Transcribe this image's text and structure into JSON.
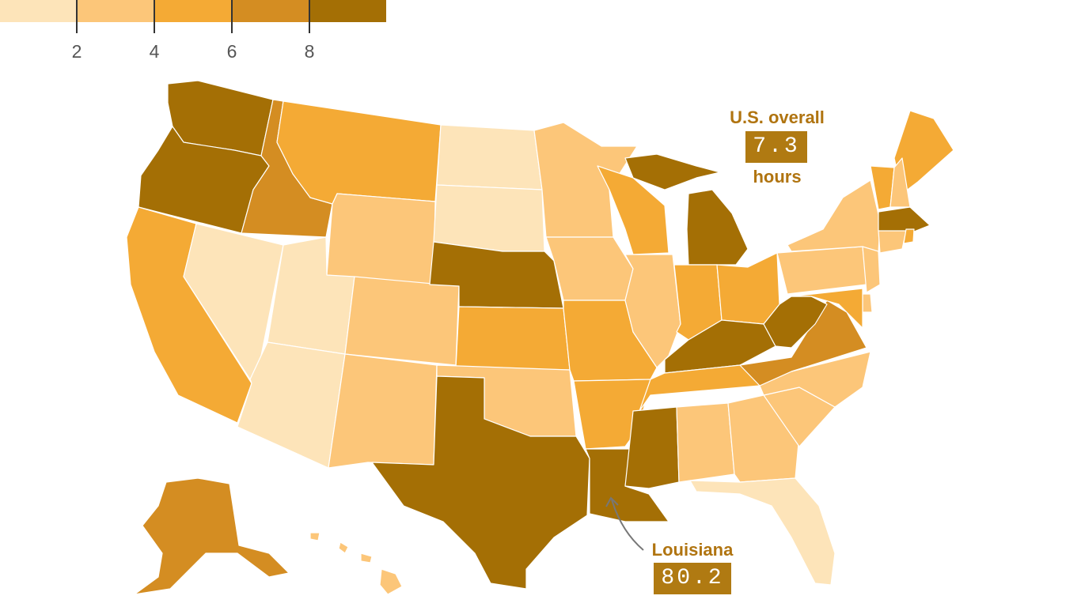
{
  "legend": {
    "colors": [
      "#fde4b9",
      "#fcc679",
      "#f4aa35",
      "#d48d22",
      "#a46f05"
    ],
    "ticks": [
      "2",
      "4",
      "6",
      "8"
    ]
  },
  "annotations": {
    "us_overall": {
      "label": "U.S. overall",
      "value": "7.3",
      "unit": "hours"
    },
    "louisiana": {
      "label": "Louisiana",
      "value": "80.2"
    }
  },
  "chart_data": {
    "type": "choropleth",
    "bins": [
      {
        "color": "#fde4b9",
        "range": "< 2"
      },
      {
        "color": "#fcc679",
        "range": "2 – 4"
      },
      {
        "color": "#f4aa35",
        "range": "4 – 6"
      },
      {
        "color": "#d48d22",
        "range": "6 – 8"
      },
      {
        "color": "#a46f05",
        "range": "> 8"
      }
    ],
    "states": {
      "WA": 4,
      "OR": 4,
      "CA": 2,
      "NV": 0,
      "ID": 3,
      "MT": 2,
      "WY": 1,
      "UT": 0,
      "AZ": 0,
      "CO": 1,
      "NM": 1,
      "ND": 0,
      "SD": 0,
      "NE": 4,
      "KS": 2,
      "OK": 1,
      "TX": 4,
      "MN": 1,
      "IA": 1,
      "MO": 2,
      "AR": 2,
      "LA": 4,
      "WI": 2,
      "IL": 1,
      "MI": 4,
      "IN": 2,
      "OH": 2,
      "KY": 4,
      "TN": 2,
      "MS": 4,
      "AL": 1,
      "GA": 1,
      "FL": 0,
      "SC": 1,
      "NC": 1,
      "VA": 3,
      "WV": 4,
      "PA": 1,
      "NY": 1,
      "ME": 2,
      "VT": 2,
      "NH": 1,
      "MA": 4,
      "CT": 1,
      "RI": 2,
      "NJ": 1,
      "DE": 1,
      "MD": 2,
      "AK": 3,
      "HI": 1
    }
  }
}
